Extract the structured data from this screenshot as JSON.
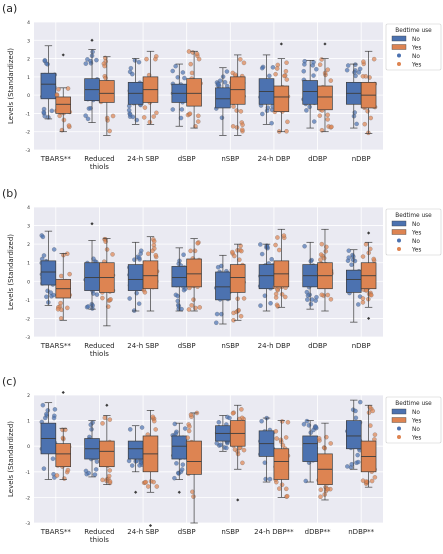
{
  "colors": {
    "no": "#4c72b0",
    "yes": "#dd8452",
    "plot_bg": "#eaeaf2",
    "grid": "#ffffff",
    "text": "#262626"
  },
  "chart_data": [
    {
      "panel_label": "(a)",
      "type": "box",
      "ylabel": "Levels (Standardized)",
      "ylim": [
        -3,
        4
      ],
      "yticks": [
        "-3",
        "-2",
        "-1",
        "0",
        "1",
        "2",
        "3",
        "4"
      ],
      "categories": [
        "TBARS**",
        "Reduced\nthiols",
        "24-h SBP",
        "dSBP",
        "nSBP",
        "24-h DBP",
        "dDBP",
        "nDBP"
      ],
      "legend": {
        "title": "Bedtime use",
        "entries": [
          "No",
          "Yes",
          "No",
          "Yes"
        ],
        "placement": "upper-right-outside"
      },
      "series": [
        {
          "name": "No",
          "boxes": [
            {
              "q1": -0.2,
              "median": 0.6,
              "q3": 1.2,
              "whislo": -1.3,
              "whishi": 2.7
            },
            {
              "q1": -0.3,
              "median": 0.3,
              "q3": 0.9,
              "whislo": -1.5,
              "whishi": 2.5,
              "fliers": [
                3.0
              ]
            },
            {
              "q1": -0.5,
              "median": 0.1,
              "q3": 0.7,
              "whislo": -1.6,
              "whishi": 2.0
            },
            {
              "q1": -0.4,
              "median": 0.1,
              "q3": 0.6,
              "whislo": -1.7,
              "whishi": 1.7
            },
            {
              "q1": -0.7,
              "median": -0.2,
              "q3": 0.4,
              "whislo": -2.2,
              "whishi": 1.5
            },
            {
              "q1": -0.5,
              "median": 0.2,
              "q3": 0.9,
              "whislo": -1.6,
              "whishi": 2.2
            },
            {
              "q1": -0.5,
              "median": 0.2,
              "q3": 0.8,
              "whislo": -1.8,
              "whishi": 1.9
            },
            {
              "q1": -0.5,
              "median": 0.1,
              "q3": 0.7,
              "whislo": -1.8,
              "whishi": 1.7
            }
          ]
        },
        {
          "name": "Yes",
          "boxes": [
            {
              "q1": -1.0,
              "median": -0.5,
              "q3": -0.1,
              "whislo": -2.0,
              "whishi": 0.4,
              "fliers": [
                2.2
              ]
            },
            {
              "q1": -0.4,
              "median": 0.1,
              "q3": 0.8,
              "whislo": -2.2,
              "whishi": 2.1
            },
            {
              "q1": -0.4,
              "median": 0.3,
              "q3": 1.0,
              "whislo": -1.6,
              "whishi": 2.4
            },
            {
              "q1": -0.6,
              "median": 0.1,
              "q3": 0.9,
              "whislo": -1.8,
              "whishi": 2.4
            },
            {
              "q1": -0.5,
              "median": 0.3,
              "q3": 1.0,
              "whislo": -2.2,
              "whishi": 2.2
            },
            {
              "q1": -0.9,
              "median": -0.1,
              "q3": 0.5,
              "whislo": -2.0,
              "whishi": 2.0,
              "fliers": [
                2.8
              ]
            },
            {
              "q1": -0.8,
              "median": -0.1,
              "q3": 0.5,
              "whislo": -2.0,
              "whishi": 2.0,
              "fliers": [
                2.8
              ]
            },
            {
              "q1": -0.7,
              "median": 0.0,
              "q3": 0.7,
              "whislo": -2.1,
              "whishi": 2.4
            }
          ]
        }
      ]
    },
    {
      "panel_label": "(b)",
      "type": "box",
      "ylabel": "Levels (Standardized)",
      "ylim": [
        -3,
        4
      ],
      "yticks": [
        "-3",
        "-2",
        "-1",
        "0",
        "1",
        "2",
        "3",
        "4"
      ],
      "categories": [
        "TBARS**",
        "Reduced\nthiols",
        "24-h SBP",
        "dSBP",
        "nSBP",
        "24-h DBP",
        "dDBP",
        "nDBP"
      ],
      "legend": {
        "title": "Bedtime use",
        "entries": [
          "No",
          "Yes",
          "No",
          "Yes"
        ],
        "placement": "upper-right-outside"
      },
      "series": [
        {
          "name": "No",
          "boxes": [
            {
              "q1": -0.2,
              "median": 0.5,
              "q3": 1.1,
              "whislo": -1.3,
              "whishi": 2.7
            },
            {
              "q1": -0.5,
              "median": 0.2,
              "q3": 1.0,
              "whislo": -1.5,
              "whishi": 2.2,
              "fliers": [
                3.1
              ]
            },
            {
              "q1": -0.5,
              "median": 0.1,
              "q3": 0.9,
              "whislo": -1.6,
              "whishi": 2.1
            },
            {
              "q1": -0.3,
              "median": 0.2,
              "q3": 0.8,
              "whislo": -1.6,
              "whishi": 1.8
            },
            {
              "q1": -1.0,
              "median": -0.3,
              "q3": 0.5,
              "whislo": -2.3,
              "whishi": 1.4
            },
            {
              "q1": -0.4,
              "median": 0.3,
              "q3": 0.9,
              "whislo": -1.6,
              "whishi": 2.0
            },
            {
              "q1": -0.3,
              "median": 0.3,
              "q3": 0.9,
              "whislo": -1.5,
              "whishi": 2.1
            },
            {
              "q1": -0.6,
              "median": 0.1,
              "q3": 0.6,
              "whislo": -2.2,
              "whishi": 1.7
            }
          ]
        },
        {
          "name": "Yes",
          "boxes": [
            {
              "q1": -0.9,
              "median": -0.4,
              "q3": 0.1,
              "whislo": -2.1,
              "whishi": 1.5
            },
            {
              "q1": -0.6,
              "median": 0.2,
              "q3": 1.0,
              "whislo": -2.4,
              "whishi": 2.3
            },
            {
              "q1": -0.4,
              "median": 0.3,
              "q3": 1.1,
              "whislo": -1.6,
              "whishi": 2.4
            },
            {
              "q1": -0.3,
              "median": 0.4,
              "q3": 1.2,
              "whislo": -1.6,
              "whishi": 2.3
            },
            {
              "q1": -0.6,
              "median": 0.2,
              "q3": 0.9,
              "whislo": -2.1,
              "whishi": 2.0
            },
            {
              "q1": -0.3,
              "median": 0.4,
              "q3": 1.1,
              "whislo": -1.4,
              "whishi": 2.8
            },
            {
              "q1": -0.4,
              "median": 0.3,
              "q3": 1.0,
              "whislo": -1.6,
              "whishi": 2.8
            },
            {
              "q1": -0.4,
              "median": 0.3,
              "q3": 1.0,
              "whislo": -1.4,
              "whishi": 2.1,
              "fliers": [
                2.6,
                -2.0
              ]
            }
          ]
        }
      ]
    },
    {
      "panel_label": "(c)",
      "type": "box",
      "ylabel": "Levels (Standardized)",
      "ylim": [
        -3,
        2
      ],
      "yticks": [
        "-3",
        "-2",
        "-1",
        "0",
        "1",
        "2"
      ],
      "categories": [
        "TBARS**",
        "Reduced\nthiols",
        "24-h SBP",
        "dSBP",
        "nSBP",
        "24-h DBP**",
        "dDBP**",
        "nDBP**"
      ],
      "legend": {
        "title": "Bedtime use",
        "entries": [
          "No",
          "Yes",
          "No",
          "Yes"
        ],
        "placement": "upper-right-outside"
      },
      "series": [
        {
          "name": "No",
          "boxes": [
            {
              "q1": -0.3,
              "median": 0.3,
              "q3": 0.9,
              "whislo": -1.3,
              "whishi": 1.7
            },
            {
              "q1": -0.5,
              "median": -0.1,
              "q3": 0.3,
              "whislo": -1.2,
              "whishi": 1.0
            },
            {
              "q1": -0.5,
              "median": -0.1,
              "q3": 0.2,
              "whislo": -1.0,
              "whishi": 0.8,
              "fliers": [
                -1.8
              ]
            },
            {
              "q1": -0.5,
              "median": 0.0,
              "q3": 0.4,
              "whislo": -1.3,
              "whishi": 0.9,
              "fliers": [
                -1.8
              ]
            },
            {
              "q1": 0.2,
              "median": 0.5,
              "q3": 0.8,
              "whislo": -0.2,
              "whishi": 1.2
            },
            {
              "q1": -0.4,
              "median": 0.1,
              "q3": 0.6,
              "whislo": -1.4,
              "whishi": 1.1
            },
            {
              "q1": -0.6,
              "median": 0.1,
              "q3": 0.4,
              "whislo": -1.4,
              "whishi": 1.0
            },
            {
              "q1": -0.1,
              "median": 0.4,
              "q3": 1.0,
              "whislo": -0.9,
              "whishi": 1.8
            }
          ]
        },
        {
          "name": "Yes",
          "boxes": [
            {
              "q1": -0.8,
              "median": -0.3,
              "q3": 0.1,
              "whislo": -1.3,
              "whishi": 0.7,
              "fliers": [
                2.1
              ]
            },
            {
              "q1": -0.8,
              "median": -0.2,
              "q3": 0.2,
              "whislo": -1.5,
              "whishi": 1.2,
              "fliers": [
                1.6
              ]
            },
            {
              "q1": -1.0,
              "median": -0.3,
              "q3": 0.4,
              "whislo": -1.8,
              "whishi": 1.4,
              "fliers": [
                -3.1
              ]
            },
            {
              "q1": -1.1,
              "median": -0.6,
              "q3": 0.2,
              "whislo": -3.0,
              "whishi": 1.3
            },
            {
              "q1": 0.0,
              "median": 0.5,
              "q3": 1.0,
              "whislo": -0.9,
              "whishi": 1.6,
              "fliers": [
                -2.1
              ]
            },
            {
              "q1": -1.3,
              "median": -0.6,
              "q3": -0.1,
              "whislo": -2.0,
              "whishi": 1.0
            },
            {
              "q1": -1.5,
              "median": -0.9,
              "q3": -0.3,
              "whislo": -2.1,
              "whishi": 0.9
            },
            {
              "q1": -1.0,
              "median": -0.4,
              "q3": 0.2,
              "whislo": -1.6,
              "whishi": 1.6
            }
          ]
        }
      ]
    }
  ]
}
